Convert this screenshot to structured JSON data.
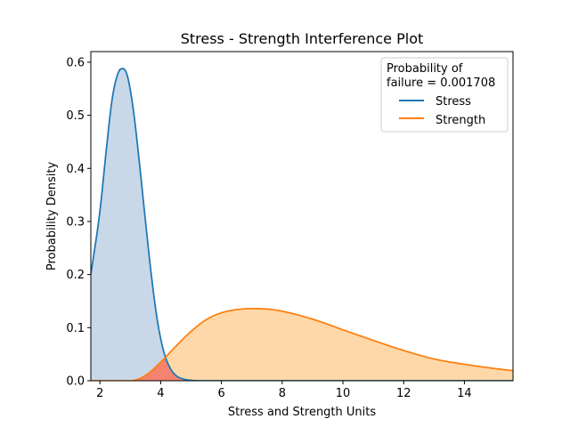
{
  "chart_data": {
    "type": "area",
    "title": "Stress - Strength Interference Plot",
    "xlabel": "Stress and Strength Units",
    "ylabel": "Probability Density",
    "xlim": [
      1.7,
      15.6
    ],
    "ylim": [
      0,
      0.62
    ],
    "xticks": [
      "2",
      "4",
      "6",
      "8",
      "10",
      "12",
      "14"
    ],
    "xtick_values": [
      2,
      4,
      6,
      8,
      10,
      12,
      14
    ],
    "yticks": [
      "0.0",
      "0.1",
      "0.2",
      "0.3",
      "0.4",
      "0.5",
      "0.6"
    ],
    "ytick_values": [
      0,
      0.1,
      0.2,
      0.3,
      0.4,
      0.5,
      0.6
    ],
    "grid": false,
    "legend": {
      "title_line1": "Probability of",
      "title_line2": "failure = 0.001708",
      "placement": "upper-right"
    },
    "series": [
      {
        "name": "Stress",
        "color": "#1f77b4",
        "fill": "#c8d8e8",
        "x": [
          1.7,
          2.0,
          2.2,
          2.4,
          2.6,
          2.75,
          2.9,
          3.1,
          3.3,
          3.5,
          3.7,
          3.9,
          4.1,
          4.3,
          4.5,
          4.7,
          5.0,
          5.5,
          6.0,
          15.6
        ],
        "y": [
          0.2,
          0.32,
          0.43,
          0.53,
          0.58,
          0.588,
          0.575,
          0.51,
          0.41,
          0.3,
          0.195,
          0.11,
          0.055,
          0.025,
          0.01,
          0.004,
          0.0008,
          0.0,
          0.0,
          0.0
        ]
      },
      {
        "name": "Strength",
        "color": "#ff7f0e",
        "fill": "#fed8a8",
        "x": [
          1.7,
          3.0,
          3.5,
          4.0,
          4.5,
          5.0,
          5.5,
          6.0,
          6.5,
          7.0,
          7.5,
          8.0,
          9.0,
          10.0,
          11.0,
          12.0,
          13.0,
          14.0,
          15.0,
          15.6
        ],
        "y": [
          0.0,
          0.0,
          0.01,
          0.035,
          0.065,
          0.093,
          0.115,
          0.128,
          0.134,
          0.136,
          0.135,
          0.131,
          0.116,
          0.096,
          0.076,
          0.057,
          0.041,
          0.031,
          0.023,
          0.019
        ]
      }
    ],
    "interference_fill": "#f4836f"
  }
}
